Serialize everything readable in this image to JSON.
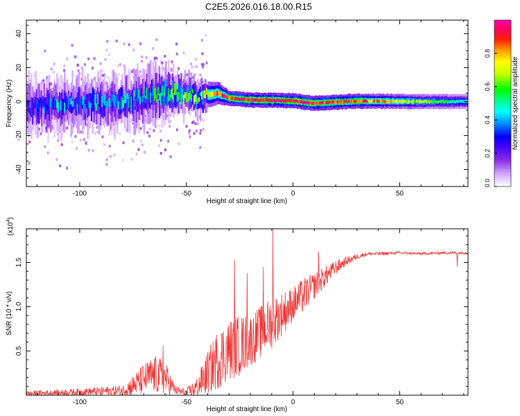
{
  "title": "C2E5.2026.016.18.00.R15",
  "chart_data": [
    {
      "type": "heatmap",
      "name": "spectrogram",
      "xlabel": "Height of straight line (km)",
      "ylabel": "Frequency (Hz)",
      "xlim": [
        -125,
        82
      ],
      "ylim": [
        -50,
        48
      ],
      "xticks": [
        -100,
        -50,
        0,
        50
      ],
      "xtick_labels": [
        "-100",
        "-50",
        "0",
        "50"
      ],
      "yticks": [
        -40,
        -20,
        0,
        20,
        40
      ],
      "ytick_labels": [
        "-40",
        "-20",
        "0",
        "20",
        "40"
      ],
      "colorbar": {
        "label": "Normalized spectral amplitude",
        "range": [
          0.0,
          1.0
        ],
        "ticks": [
          0.0,
          0.2,
          0.4,
          0.6,
          0.8
        ],
        "tick_labels": [
          "0.0",
          "0.2",
          "0.4",
          "0.6",
          "0.8"
        ],
        "colors": [
          "#ffffff",
          "#c890ff",
          "#8a2be2",
          "#3f00ff",
          "#0000ff",
          "#00ffff",
          "#00ff00",
          "#ffff00",
          "#ff8000",
          "#ff0000",
          "#ff00aa"
        ]
      },
      "ridge": [
        {
          "x": -125,
          "freq": -3,
          "spread": 6,
          "amp": 0.35
        },
        {
          "x": -100,
          "freq": -2,
          "spread": 6,
          "amp": 0.4
        },
        {
          "x": -80,
          "freq": 0,
          "spread": 6,
          "amp": 0.45
        },
        {
          "x": -60,
          "freq": 5,
          "spread": 6,
          "amp": 0.5
        },
        {
          "x": -45,
          "freq": 3,
          "spread": 4,
          "amp": 0.6
        },
        {
          "x": -35,
          "freq": 5,
          "spread": 3,
          "amp": 0.85
        },
        {
          "x": -30,
          "freq": 2,
          "spread": 2,
          "amp": 0.95
        },
        {
          "x": -20,
          "freq": 1,
          "spread": 2,
          "amp": 0.95
        },
        {
          "x": 0,
          "freq": 0.5,
          "spread": 2,
          "amp": 1.0
        },
        {
          "x": 10,
          "freq": -1,
          "spread": 2,
          "amp": 0.95
        },
        {
          "x": 30,
          "freq": 0.3,
          "spread": 2,
          "amp": 0.9
        },
        {
          "x": 60,
          "freq": 0,
          "spread": 2,
          "amp": 0.65
        },
        {
          "x": 82,
          "freq": 0,
          "spread": 2,
          "amp": 0.5
        }
      ]
    },
    {
      "type": "line",
      "name": "snr",
      "xlabel": "Height of straight line (km)",
      "ylabel": "SNR (10 * v/v)",
      "multiplier_label": "(x10",
      "multiplier_exponent": "4",
      "multiplier_close": ")",
      "xlim": [
        -125,
        82
      ],
      "ylim": [
        0.0,
        1.88
      ],
      "xticks": [
        -100,
        -50,
        0,
        50
      ],
      "xtick_labels": [
        "-100",
        "-50",
        "0",
        "50"
      ],
      "yticks": [
        0.5,
        1.0,
        1.5
      ],
      "ytick_labels": [
        "0.5",
        "1.0",
        "1.5"
      ],
      "color": "#ee3333",
      "envelope": {
        "x": [
          -125,
          -100,
          -80,
          -75,
          -70,
          -65,
          -60,
          -55,
          -50,
          -45,
          -40,
          -35,
          -30,
          -25,
          -20,
          -15,
          -10,
          -5,
          0,
          5,
          10,
          15,
          20,
          25,
          30,
          35,
          40,
          50,
          60,
          70,
          82
        ],
        "base": [
          0.02,
          0.04,
          0.06,
          0.12,
          0.2,
          0.25,
          0.22,
          0.06,
          0.03,
          0.1,
          0.28,
          0.45,
          0.55,
          0.6,
          0.65,
          0.75,
          0.85,
          0.95,
          1.05,
          1.15,
          1.25,
          1.35,
          1.45,
          1.52,
          1.57,
          1.6,
          1.6,
          1.61,
          1.6,
          1.61,
          1.61
        ],
        "amp": [
          0.03,
          0.04,
          0.06,
          0.12,
          0.18,
          0.22,
          0.2,
          0.05,
          0.05,
          0.12,
          0.25,
          0.35,
          0.35,
          0.35,
          0.3,
          0.3,
          0.3,
          0.25,
          0.2,
          0.2,
          0.15,
          0.12,
          0.08,
          0.05,
          0.03,
          0.02,
          0.02,
          0.015,
          0.015,
          0.015,
          0.015
        ]
      },
      "spikes": [
        {
          "x": -9.5,
          "value": 1.88
        },
        {
          "x": -27.5,
          "value": 1.53
        },
        {
          "x": -21.5,
          "value": 1.38
        },
        {
          "x": -14,
          "value": 1.45
        },
        {
          "x": 12,
          "value": 1.62
        },
        {
          "x": -61,
          "value": 0.56
        },
        {
          "x": 77,
          "value": 1.45
        }
      ]
    }
  ]
}
